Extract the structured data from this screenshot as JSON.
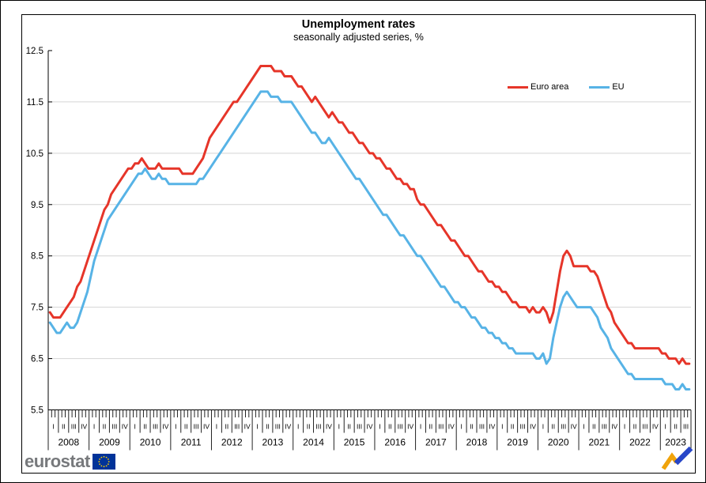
{
  "title": "Unemployment rates",
  "subtitle": "seasonally adjusted series, %",
  "legend": {
    "items": [
      {
        "label": "Euro area",
        "color": "#e63529"
      },
      {
        "label": "EU",
        "color": "#57b3e6"
      }
    ]
  },
  "footer": {
    "logo_text": "eurostat",
    "flag_color": "#003399",
    "star_color": "#ffcc00",
    "trend_icon_colors": {
      "yellow": "#f0a30a",
      "blue": "#2746c8"
    }
  },
  "chart_data": {
    "type": "line",
    "title": "Unemployment rates",
    "subtitle": "seasonally adjusted series, %",
    "unit": "%",
    "frequency": "monthly",
    "x_start": "2008-01",
    "x_end": "2023-09",
    "years": [
      "2008",
      "2009",
      "2010",
      "2011",
      "2012",
      "2013",
      "2014",
      "2015",
      "2016",
      "2017",
      "2018",
      "2019",
      "2020",
      "2021",
      "2022",
      "2023"
    ],
    "quarter_labels": [
      "I",
      "II",
      "III",
      "IV"
    ],
    "last_year_quarters": 3,
    "ylim": [
      5.5,
      12.5
    ],
    "yticks": [
      5.5,
      6.5,
      7.5,
      8.5,
      9.5,
      10.5,
      11.5,
      12.5
    ],
    "grid": "horizontal",
    "grid_color": "#d4d4d4",
    "legend_position": "inside-top-right",
    "series": [
      {
        "name": "Euro area",
        "color": "#e63529",
        "values": [
          7.4,
          7.3,
          7.3,
          7.3,
          7.4,
          7.5,
          7.6,
          7.7,
          7.9,
          8.0,
          8.2,
          8.4,
          8.6,
          8.8,
          9.0,
          9.2,
          9.4,
          9.5,
          9.7,
          9.8,
          9.9,
          10.0,
          10.1,
          10.2,
          10.2,
          10.3,
          10.3,
          10.4,
          10.3,
          10.2,
          10.2,
          10.2,
          10.3,
          10.2,
          10.2,
          10.2,
          10.2,
          10.2,
          10.2,
          10.1,
          10.1,
          10.1,
          10.1,
          10.2,
          10.3,
          10.4,
          10.6,
          10.8,
          10.9,
          11.0,
          11.1,
          11.2,
          11.3,
          11.4,
          11.5,
          11.5,
          11.6,
          11.7,
          11.8,
          11.9,
          12.0,
          12.1,
          12.2,
          12.2,
          12.2,
          12.2,
          12.1,
          12.1,
          12.1,
          12.0,
          12.0,
          12.0,
          11.9,
          11.8,
          11.8,
          11.7,
          11.6,
          11.5,
          11.6,
          11.5,
          11.4,
          11.3,
          11.2,
          11.3,
          11.2,
          11.1,
          11.1,
          11.0,
          10.9,
          10.9,
          10.8,
          10.7,
          10.7,
          10.6,
          10.5,
          10.5,
          10.4,
          10.4,
          10.3,
          10.2,
          10.2,
          10.1,
          10.0,
          10.0,
          9.9,
          9.9,
          9.8,
          9.8,
          9.6,
          9.5,
          9.5,
          9.4,
          9.3,
          9.2,
          9.1,
          9.1,
          9.0,
          8.9,
          8.8,
          8.8,
          8.7,
          8.6,
          8.5,
          8.5,
          8.4,
          8.3,
          8.2,
          8.2,
          8.1,
          8.0,
          8.0,
          7.9,
          7.9,
          7.8,
          7.8,
          7.7,
          7.6,
          7.6,
          7.5,
          7.5,
          7.5,
          7.4,
          7.5,
          7.4,
          7.4,
          7.5,
          7.4,
          7.2,
          7.4,
          7.8,
          8.2,
          8.5,
          8.6,
          8.5,
          8.3,
          8.3,
          8.3,
          8.3,
          8.3,
          8.2,
          8.2,
          8.1,
          7.9,
          7.7,
          7.5,
          7.4,
          7.2,
          7.1,
          7.0,
          6.9,
          6.8,
          6.8,
          6.7,
          6.7,
          6.7,
          6.7,
          6.7,
          6.7,
          6.7,
          6.7,
          6.6,
          6.6,
          6.5,
          6.5,
          6.5,
          6.4,
          6.5,
          6.4,
          6.4
        ]
      },
      {
        "name": "EU",
        "color": "#57b3e6",
        "values": [
          7.2,
          7.1,
          7.0,
          7.0,
          7.1,
          7.2,
          7.1,
          7.1,
          7.2,
          7.4,
          7.6,
          7.8,
          8.1,
          8.4,
          8.6,
          8.8,
          9.0,
          9.2,
          9.3,
          9.4,
          9.5,
          9.6,
          9.7,
          9.8,
          9.9,
          10.0,
          10.1,
          10.1,
          10.2,
          10.1,
          10.0,
          10.0,
          10.1,
          10.0,
          10.0,
          9.9,
          9.9,
          9.9,
          9.9,
          9.9,
          9.9,
          9.9,
          9.9,
          9.9,
          10.0,
          10.0,
          10.1,
          10.2,
          10.3,
          10.4,
          10.5,
          10.6,
          10.7,
          10.8,
          10.9,
          11.0,
          11.1,
          11.2,
          11.3,
          11.4,
          11.5,
          11.6,
          11.7,
          11.7,
          11.7,
          11.6,
          11.6,
          11.6,
          11.5,
          11.5,
          11.5,
          11.5,
          11.4,
          11.3,
          11.2,
          11.1,
          11.0,
          10.9,
          10.9,
          10.8,
          10.7,
          10.7,
          10.8,
          10.7,
          10.6,
          10.5,
          10.4,
          10.3,
          10.2,
          10.1,
          10.0,
          10.0,
          9.9,
          9.8,
          9.7,
          9.6,
          9.5,
          9.4,
          9.3,
          9.3,
          9.2,
          9.1,
          9.0,
          8.9,
          8.9,
          8.8,
          8.7,
          8.6,
          8.5,
          8.5,
          8.4,
          8.3,
          8.2,
          8.1,
          8.0,
          7.9,
          7.9,
          7.8,
          7.7,
          7.6,
          7.6,
          7.5,
          7.5,
          7.4,
          7.3,
          7.3,
          7.2,
          7.1,
          7.1,
          7.0,
          7.0,
          6.9,
          6.9,
          6.8,
          6.8,
          6.7,
          6.7,
          6.6,
          6.6,
          6.6,
          6.6,
          6.6,
          6.6,
          6.5,
          6.5,
          6.6,
          6.4,
          6.5,
          6.9,
          7.2,
          7.5,
          7.7,
          7.8,
          7.7,
          7.6,
          7.5,
          7.5,
          7.5,
          7.5,
          7.5,
          7.4,
          7.3,
          7.1,
          7.0,
          6.9,
          6.7,
          6.6,
          6.5,
          6.4,
          6.3,
          6.2,
          6.2,
          6.1,
          6.1,
          6.1,
          6.1,
          6.1,
          6.1,
          6.1,
          6.1,
          6.1,
          6.0,
          6.0,
          6.0,
          5.9,
          5.9,
          6.0,
          5.9,
          5.9
        ]
      }
    ]
  }
}
